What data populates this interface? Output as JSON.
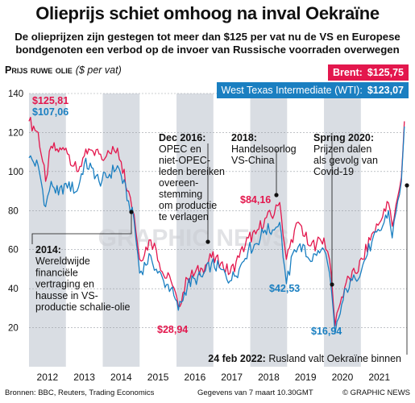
{
  "title": "Olieprijs schiet omhoog na inval Oekraïne",
  "subtitle_line1": "De olieprijzen zijn gestegen tot meer dan $125 per vat nu de VS en Europese",
  "subtitle_line2": "bondgenoten een verbod op de invoer van Russische voorraden overwegen",
  "chart_title": "Prijs ruwe olie",
  "chart_unit": "($ per vat)",
  "legend": {
    "brent_label": "Brent:",
    "brent_value": "$125,75",
    "wti_label": "West Texas Intermediate (WTI):",
    "wti_value": "$123,07"
  },
  "colors": {
    "brent": "#e3174d",
    "wti": "#1a7fc1",
    "shade": "#d9dde3"
  },
  "annotations": {
    "brent_2012": "$125,81",
    "wti_2012": "$107,06",
    "a2014_head": "2014:",
    "a2014_lines": [
      "Wereldwijde",
      "financiële",
      "vertraging en",
      "hausse in VS-",
      "productie schalie-olie"
    ],
    "dec2016_head": "Dec 2016:",
    "dec2016_lines": [
      "OPEC en",
      "niet-OPEC-",
      "leden bereiken",
      "overeen-",
      "stemming",
      "om productie",
      "te verlagen"
    ],
    "a2018_head": "2018:",
    "a2018_lines": [
      "Handelsoorlog",
      "VS-China"
    ],
    "spring2020_head": "Spring 2020:",
    "spring2020_lines": [
      "Prijzen dalen",
      "als gevolg van",
      "Covid-19"
    ],
    "low_2016": "$28,94",
    "high_2018": "$84,16",
    "low_2018": "$42,53",
    "low_2020": "$16,94",
    "feb2022_head": "24 feb 2022:",
    "feb2022_text": "Rusland valt Oekraïne binnen"
  },
  "watermark": "GRAPHIC NEWS",
  "footer": {
    "sources": "Bronnen: BBC, Reuters, Trading Economics",
    "date": "Gegevens van 7 maart 10.30GMT",
    "copyright": "© GRAPHIC NEWS"
  },
  "chart_data": {
    "type": "line",
    "xlabel": "",
    "ylabel": "",
    "x_ticks": [
      "2012",
      "2013",
      "2014",
      "2015",
      "2016",
      "2017",
      "2018",
      "2019",
      "2020",
      "2021"
    ],
    "ylim": [
      0,
      140
    ],
    "y_ticks": [
      0,
      20,
      40,
      60,
      80,
      100,
      120,
      140
    ],
    "shaded_years": [
      "2012",
      "2014",
      "2016",
      "2018",
      "2020"
    ],
    "series": [
      {
        "name": "Brent",
        "x": [
          2012.0,
          2012.25,
          2012.45,
          2012.6,
          2012.8,
          2013.0,
          2013.3,
          2013.5,
          2013.7,
          2013.9,
          2014.1,
          2014.4,
          2014.5,
          2014.7,
          2014.85,
          2015.0,
          2015.3,
          2015.45,
          2015.65,
          2015.85,
          2016.05,
          2016.3,
          2016.5,
          2016.7,
          2016.95,
          2017.2,
          2017.45,
          2017.7,
          2017.95,
          2018.15,
          2018.4,
          2018.65,
          2018.8,
          2018.98,
          2019.2,
          2019.35,
          2019.6,
          2019.8,
          2020.0,
          2020.15,
          2020.3,
          2020.4,
          2020.6,
          2020.85,
          2021.05,
          2021.3,
          2021.55,
          2021.75,
          2021.85,
          2022.0,
          2022.1,
          2022.18
        ],
        "values": [
          125.81,
          120,
          95,
          113,
          110,
          112,
          100,
          108,
          111,
          109,
          108,
          112,
          105,
          90,
          78,
          55,
          65,
          60,
          47,
          44,
          31,
          45,
          48,
          50,
          56,
          53,
          48,
          56,
          66,
          68,
          76,
          78,
          84.16,
          55,
          70,
          73,
          62,
          63,
          66,
          55,
          21,
          30,
          43,
          48,
          55,
          68,
          75,
          84,
          72,
          87,
          97,
          125.75
        ]
      },
      {
        "name": "West Texas Intermediate (WTI)",
        "x": [
          2012.0,
          2012.25,
          2012.45,
          2012.6,
          2012.8,
          2013.0,
          2013.3,
          2013.5,
          2013.7,
          2013.9,
          2014.1,
          2014.4,
          2014.5,
          2014.7,
          2014.85,
          2015.0,
          2015.3,
          2015.45,
          2015.65,
          2015.85,
          2016.05,
          2016.3,
          2016.5,
          2016.7,
          2016.95,
          2017.2,
          2017.45,
          2017.7,
          2017.95,
          2018.15,
          2018.4,
          2018.65,
          2018.8,
          2018.98,
          2019.2,
          2019.35,
          2019.6,
          2019.8,
          2020.0,
          2020.15,
          2020.3,
          2020.4,
          2020.6,
          2020.85,
          2021.05,
          2021.3,
          2021.55,
          2021.75,
          2021.85,
          2022.0,
          2022.1,
          2022.18
        ],
        "values": [
          107.06,
          103,
          82,
          95,
          88,
          94,
          90,
          104,
          102,
          95,
          97,
          103,
          98,
          85,
          75,
          48,
          57,
          50,
          44,
          40,
          28.94,
          42,
          45,
          46,
          53,
          50,
          44,
          50,
          60,
          63,
          70,
          70,
          74,
          42.53,
          60,
          63,
          55,
          57,
          60,
          48,
          16.94,
          25,
          40,
          45,
          52,
          64,
          70,
          80,
          66,
          85,
          95,
          123.07
        ]
      }
    ]
  }
}
